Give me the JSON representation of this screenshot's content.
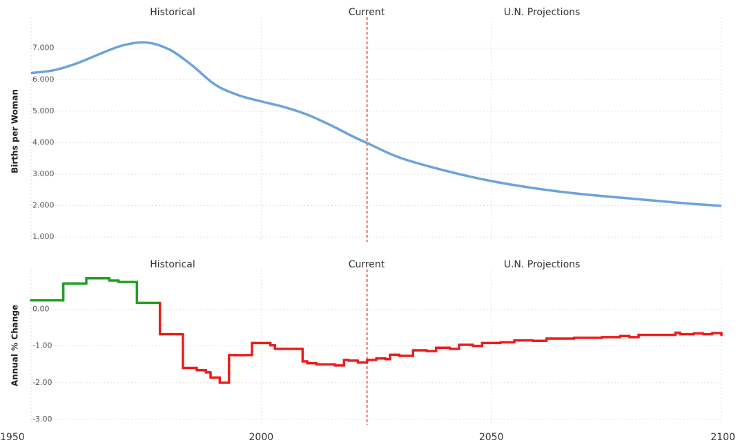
{
  "chart_data": [
    {
      "type": "line",
      "ylabel": "Births per Woman",
      "color": "#6ca3dc",
      "grid": true,
      "annotations": [
        "Historical",
        "Current",
        "U.N. Projections"
      ],
      "current_x": 2023,
      "x": [
        1950,
        1955,
        1960,
        1965,
        1970,
        1975,
        1980,
        1985,
        1990,
        1995,
        2000,
        2005,
        2010,
        2015,
        2020,
        2023,
        2030,
        2040,
        2050,
        2060,
        2070,
        2080,
        2090,
        2100
      ],
      "values": [
        6.21,
        6.3,
        6.52,
        6.82,
        7.09,
        7.18,
        6.96,
        6.45,
        5.84,
        5.51,
        5.31,
        5.13,
        4.89,
        4.56,
        4.19,
        3.99,
        3.53,
        3.11,
        2.78,
        2.54,
        2.36,
        2.23,
        2.1,
        1.99
      ],
      "xlim": [
        1950,
        2100
      ],
      "ylim": [
        0.85,
        7.98
      ],
      "yticks": [
        {
          "value": 1,
          "label": "1.000"
        },
        {
          "value": 2,
          "label": "2.000"
        },
        {
          "value": 3,
          "label": "3.000"
        },
        {
          "value": 4,
          "label": "4.000"
        },
        {
          "value": 5,
          "label": "5.000"
        },
        {
          "value": 6,
          "label": "6.000"
        },
        {
          "value": 7,
          "label": "7.000"
        }
      ]
    },
    {
      "type": "step",
      "ylabel": "Annual % Change",
      "color_positive": "#22a022",
      "color_negative": "#ee1c1c",
      "grid": true,
      "annotations": [
        "Historical",
        "Current",
        "U.N. Projections"
      ],
      "current_x": 2023,
      "x": [
        1950,
        1957,
        1962,
        1967,
        1969,
        1973,
        1978,
        1983,
        1986,
        1988,
        1989,
        1991,
        1993,
        1998,
        2002,
        2003,
        2009,
        2010,
        2012,
        2016,
        2018,
        2019,
        2021,
        2023,
        2025,
        2027,
        2028,
        2030,
        2033,
        2036,
        2038,
        2041,
        2043,
        2046,
        2048,
        2052,
        2055,
        2059,
        2062,
        2068,
        2074,
        2078,
        2080,
        2082,
        2090,
        2091,
        2094,
        2096,
        2098,
        2100
      ],
      "values": [
        0.24,
        0.7,
        0.84,
        0.78,
        0.74,
        0.17,
        -0.68,
        -1.6,
        -1.66,
        -1.72,
        -1.86,
        -2.0,
        -1.25,
        -0.92,
        -0.98,
        -1.08,
        -1.42,
        -1.47,
        -1.5,
        -1.53,
        -1.38,
        -1.4,
        -1.45,
        -1.38,
        -1.34,
        -1.36,
        -1.24,
        -1.27,
        -1.12,
        -1.14,
        -1.05,
        -1.08,
        -0.97,
        -1.0,
        -0.92,
        -0.9,
        -0.85,
        -0.86,
        -0.8,
        -0.78,
        -0.76,
        -0.73,
        -0.76,
        -0.7,
        -0.64,
        -0.68,
        -0.66,
        -0.68,
        -0.65,
        -0.7
      ],
      "xlim": [
        1950,
        2100
      ],
      "ylim": [
        -3.15,
        1.08
      ],
      "xticks": [
        1950,
        2000,
        2050,
        2100
      ],
      "yticks": [
        {
          "value": 0,
          "label": "0.00"
        },
        {
          "value": -1,
          "label": "-1.00"
        },
        {
          "value": -2,
          "label": "-2.00"
        },
        {
          "value": -3,
          "label": "-3.00"
        }
      ]
    }
  ]
}
